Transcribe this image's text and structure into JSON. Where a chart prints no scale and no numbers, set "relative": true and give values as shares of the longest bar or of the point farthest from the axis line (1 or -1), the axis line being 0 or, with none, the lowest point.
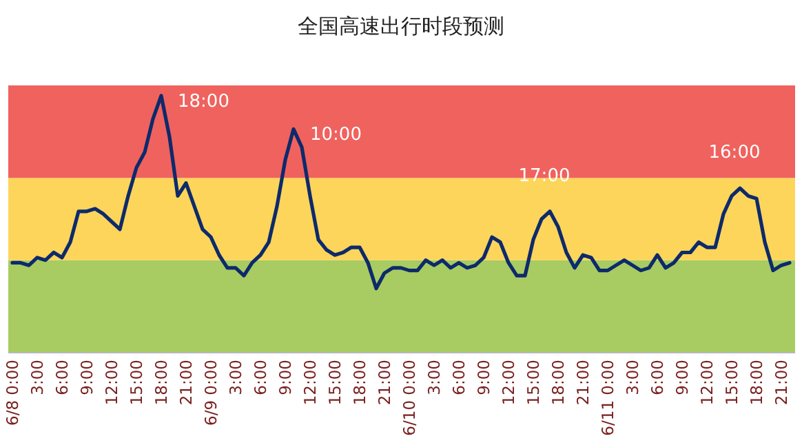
{
  "chart_data": {
    "type": "line",
    "title": "全国高速出行时段预测",
    "relative": true,
    "x": [
      "--06-08T00:00",
      "--06-08T01:00",
      "--06-08T02:00",
      "--06-08T03:00",
      "--06-08T04:00",
      "--06-08T05:00",
      "--06-08T06:00",
      "--06-08T07:00",
      "--06-08T08:00",
      "--06-08T09:00",
      "--06-08T10:00",
      "--06-08T11:00",
      "--06-08T12:00",
      "--06-08T13:00",
      "--06-08T14:00",
      "--06-08T15:00",
      "--06-08T16:00",
      "--06-08T17:00",
      "--06-08T18:00",
      "--06-08T19:00",
      "--06-08T20:00",
      "--06-08T21:00",
      "--06-08T22:00",
      "--06-08T23:00",
      "--06-09T00:00",
      "--06-09T01:00",
      "--06-09T02:00",
      "--06-09T03:00",
      "--06-09T04:00",
      "--06-09T05:00",
      "--06-09T06:00",
      "--06-09T07:00",
      "--06-09T08:00",
      "--06-09T09:00",
      "--06-09T10:00",
      "--06-09T11:00",
      "--06-09T12:00",
      "--06-09T13:00",
      "--06-09T14:00",
      "--06-09T15:00",
      "--06-09T16:00",
      "--06-09T17:00",
      "--06-09T18:00",
      "--06-09T19:00",
      "--06-09T20:00",
      "--06-09T21:00",
      "--06-09T22:00",
      "--06-09T23:00",
      "--06-10T00:00",
      "--06-10T01:00",
      "--06-10T02:00",
      "--06-10T03:00",
      "--06-10T04:00",
      "--06-10T05:00",
      "--06-10T06:00",
      "--06-10T07:00",
      "--06-10T08:00",
      "--06-10T09:00",
      "--06-10T10:00",
      "--06-10T11:00",
      "--06-10T12:00",
      "--06-10T13:00",
      "--06-10T14:00",
      "--06-10T15:00",
      "--06-10T16:00",
      "--06-10T17:00",
      "--06-10T18:00",
      "--06-10T19:00",
      "--06-10T20:00",
      "--06-10T21:00",
      "--06-10T22:00",
      "--06-10T23:00",
      "--06-11T00:00",
      "--06-11T01:00",
      "--06-11T02:00",
      "--06-11T03:00",
      "--06-11T04:00",
      "--06-11T05:00",
      "--06-11T06:00",
      "--06-11T07:00",
      "--06-11T08:00",
      "--06-11T09:00",
      "--06-11T10:00",
      "--06-11T11:00",
      "--06-11T12:00",
      "--06-11T13:00",
      "--06-11T14:00",
      "--06-11T15:00",
      "--06-11T16:00",
      "--06-11T17:00",
      "--06-11T18:00",
      "--06-11T19:00",
      "--06-11T20:00",
      "--06-11T21:00",
      "--06-11T22:00"
    ],
    "series": [
      {
        "color": "#0d2a6b",
        "values": [
          0.35,
          0.35,
          0.34,
          0.37,
          0.36,
          0.39,
          0.37,
          0.43,
          0.55,
          0.55,
          0.56,
          0.54,
          0.51,
          0.48,
          0.61,
          0.72,
          0.78,
          0.91,
          1.0,
          0.84,
          0.61,
          0.66,
          0.57,
          0.48,
          0.45,
          0.38,
          0.33,
          0.33,
          0.3,
          0.35,
          0.38,
          0.43,
          0.57,
          0.75,
          0.87,
          0.8,
          0.61,
          0.44,
          0.4,
          0.38,
          0.39,
          0.41,
          0.41,
          0.35,
          0.25,
          0.31,
          0.33,
          0.33,
          0.32,
          0.32,
          0.36,
          0.34,
          0.36,
          0.33,
          0.35,
          0.33,
          0.34,
          0.37,
          0.45,
          0.43,
          0.35,
          0.3,
          0.3,
          0.44,
          0.52,
          0.55,
          0.49,
          0.39,
          0.33,
          0.38,
          0.37,
          0.32,
          0.32,
          0.34,
          0.36,
          0.34,
          0.32,
          0.33,
          0.38,
          0.33,
          0.35,
          0.39,
          0.39,
          0.43,
          0.41,
          0.41,
          0.54,
          0.61,
          0.64,
          0.61,
          0.6,
          0.43,
          0.32,
          0.34,
          0.35
        ]
      }
    ],
    "xlim": [
      "--06-07T23:30",
      "--06-11T22:40"
    ],
    "xticks": [
      {
        "value": "--06-08T00:00",
        "label": "6/8 0:00"
      },
      {
        "value": "--06-08T03:00",
        "label": "3:00"
      },
      {
        "value": "--06-08T06:00",
        "label": "6:00"
      },
      {
        "value": "--06-08T09:00",
        "label": "9:00"
      },
      {
        "value": "--06-08T12:00",
        "label": "12:00"
      },
      {
        "value": "--06-08T15:00",
        "label": "15:00"
      },
      {
        "value": "--06-08T18:00",
        "label": "18:00"
      },
      {
        "value": "--06-08T21:00",
        "label": "21:00"
      },
      {
        "value": "--06-09T00:00",
        "label": "6/9 0:00"
      },
      {
        "value": "--06-09T03:00",
        "label": "3:00"
      },
      {
        "value": "--06-09T06:00",
        "label": "6:00"
      },
      {
        "value": "--06-09T09:00",
        "label": "9:00"
      },
      {
        "value": "--06-09T12:00",
        "label": "12:00"
      },
      {
        "value": "--06-09T15:00",
        "label": "15:00"
      },
      {
        "value": "--06-09T18:00",
        "label": "18:00"
      },
      {
        "value": "--06-09T21:00",
        "label": "21:00"
      },
      {
        "value": "--06-10T00:00",
        "label": "6/10 0:00"
      },
      {
        "value": "--06-10T03:00",
        "label": "3:00"
      },
      {
        "value": "--06-10T06:00",
        "label": "6:00"
      },
      {
        "value": "--06-10T09:00",
        "label": "9:00"
      },
      {
        "value": "--06-10T12:00",
        "label": "12:00"
      },
      {
        "value": "--06-10T15:00",
        "label": "15:00"
      },
      {
        "value": "--06-10T18:00",
        "label": "18:00"
      },
      {
        "value": "--06-10T21:00",
        "label": "21:00"
      },
      {
        "value": "--06-11T00:00",
        "label": "6/11 0:00"
      },
      {
        "value": "--06-11T03:00",
        "label": "3:00"
      },
      {
        "value": "--06-11T06:00",
        "label": "6:00"
      },
      {
        "value": "--06-11T09:00",
        "label": "9:00"
      },
      {
        "value": "--06-11T12:00",
        "label": "12:00"
      },
      {
        "value": "--06-11T15:00",
        "label": "15:00"
      },
      {
        "value": "--06-11T18:00",
        "label": "18:00"
      },
      {
        "value": "--06-11T21:00",
        "label": "21:00"
      }
    ],
    "bands": [
      {
        "axis": "y",
        "from": 0,
        "to": 0.36,
        "color": "#a8cb62"
      },
      {
        "axis": "y",
        "from": 0.36,
        "to": 0.68,
        "color": "#fdd55a"
      },
      {
        "axis": "y",
        "from": 0.68,
        "to": 1.04,
        "color": "#f0625e"
      }
    ],
    "annotations": [
      {
        "text": "18:00",
        "x": "--06-08T18:00",
        "y": 1.0
      },
      {
        "text": "10:00",
        "x": "--06-09T10:00",
        "y": 0.87
      },
      {
        "text": "17:00",
        "x": "--06-10T17:00",
        "y": 0.55
      },
      {
        "text": "16:00",
        "x": "--06-11T16:00",
        "y": 0.64
      }
    ]
  }
}
